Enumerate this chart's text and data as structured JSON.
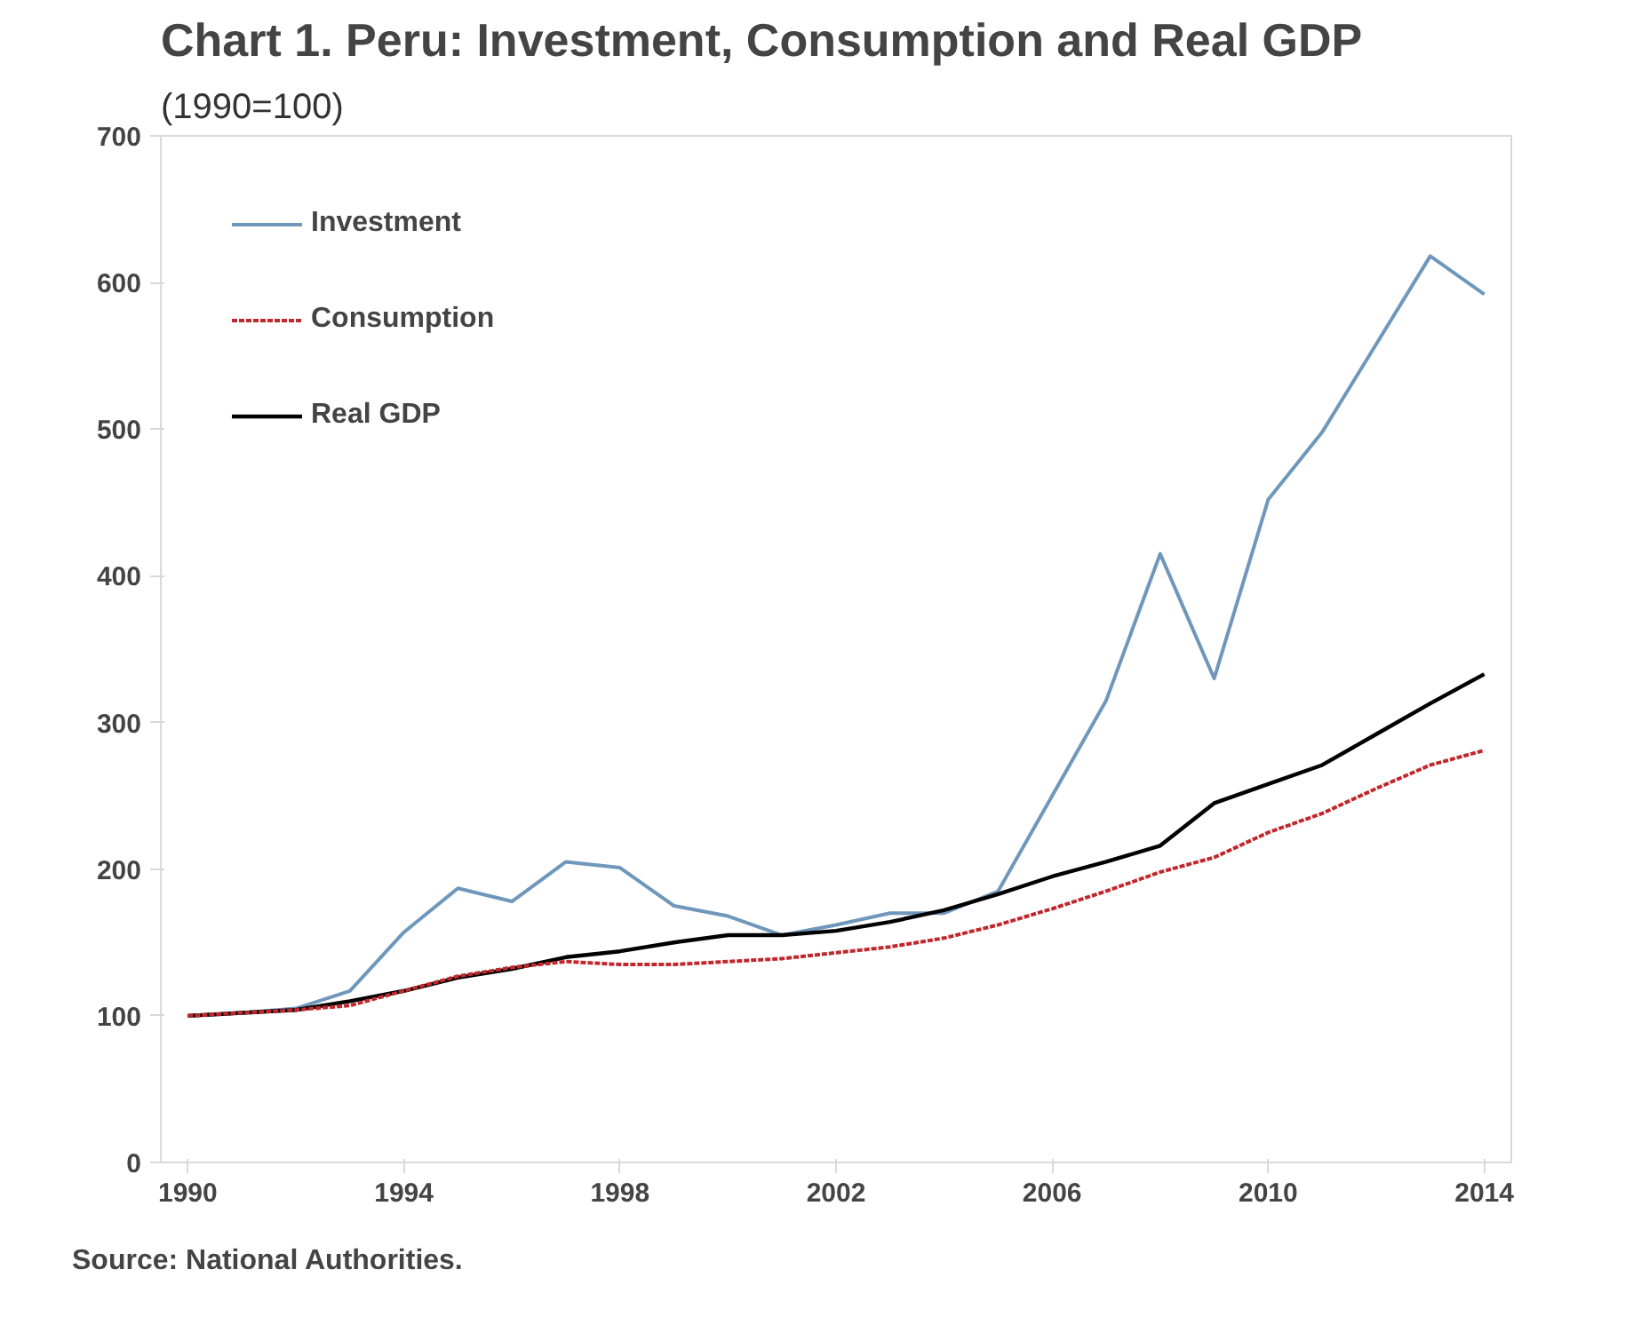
{
  "chart_data": {
    "type": "line",
    "title": "Chart 1. Peru: Investment, Consumption and Real GDP",
    "subtitle": "(1990=100)",
    "x": [
      1990,
      1991,
      1992,
      1993,
      1994,
      1995,
      1996,
      1997,
      1998,
      1999,
      2000,
      2001,
      2002,
      2003,
      2004,
      2005,
      2006,
      2007,
      2008,
      2009,
      2010,
      2011,
      2012,
      2013,
      2014
    ],
    "series": [
      {
        "name": "Investment",
        "color": "#6f97bb",
        "line_style": "solid",
        "values": [
          100,
          102,
          105,
          117,
          157,
          187,
          178,
          205,
          201,
          175,
          168,
          155,
          162,
          170,
          170,
          185,
          250,
          315,
          415,
          330,
          452,
          498,
          558,
          618,
          592
        ]
      },
      {
        "name": "Consumption",
        "color": "#c0282d",
        "line_style": "dashed",
        "values": [
          100,
          102,
          104,
          107,
          117,
          127,
          133,
          137,
          135,
          135,
          137,
          139,
          143,
          147,
          153,
          162,
          173,
          185,
          198,
          208,
          225,
          238,
          255,
          271,
          281
        ]
      },
      {
        "name": "Real GDP",
        "color": "#000000",
        "line_style": "solid",
        "values": [
          100,
          102,
          104,
          110,
          117,
          126,
          132,
          140,
          144,
          150,
          155,
          155,
          158,
          164,
          172,
          183,
          195,
          205,
          216,
          245,
          258,
          271,
          292,
          313,
          333
        ]
      }
    ],
    "xlim": [
      1989.5,
      2014.5
    ],
    "xticks": [
      1990,
      1994,
      1998,
      2002,
      2006,
      2010,
      2014
    ],
    "ylim": [
      0,
      700
    ],
    "yticks": [
      0,
      100,
      200,
      300,
      400,
      500,
      600,
      700
    ],
    "grid": false,
    "legend": "top left",
    "annotations": [
      "Source: National Authorities."
    ]
  }
}
